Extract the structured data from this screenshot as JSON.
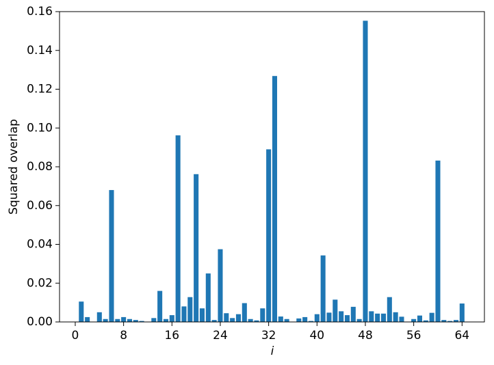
{
  "chart_data": {
    "type": "bar",
    "xlabel": "i",
    "ylabel": "Squared overlap",
    "x": [
      0,
      1,
      2,
      3,
      4,
      5,
      6,
      7,
      8,
      9,
      10,
      11,
      12,
      13,
      14,
      15,
      16,
      17,
      18,
      19,
      20,
      21,
      22,
      23,
      24,
      25,
      26,
      27,
      28,
      29,
      30,
      31,
      32,
      33,
      34,
      35,
      36,
      37,
      38,
      39,
      40,
      41,
      42,
      43,
      44,
      45,
      46,
      47,
      48,
      49,
      50,
      51,
      52,
      53,
      54,
      55,
      56,
      57,
      58,
      59,
      60,
      61,
      62,
      63,
      64
    ],
    "values": [
      0,
      0.0105,
      0.0025,
      0,
      0.005,
      0.0015,
      0.068,
      0.0015,
      0.0025,
      0.0015,
      0.001,
      0.0005,
      0,
      0.002,
      0.016,
      0.0015,
      0.0035,
      0.0962,
      0.008,
      0.0128,
      0.0762,
      0.007,
      0.025,
      0.001,
      0.0375,
      0.0045,
      0.002,
      0.004,
      0.0097,
      0.0015,
      0.0008,
      0.007,
      0.089,
      0.1268,
      0.0028,
      0.0015,
      0,
      0.0018,
      0.0025,
      0.0005,
      0.004,
      0.0343,
      0.0048,
      0.0115,
      0.0055,
      0.0035,
      0.0078,
      0.0015,
      0.1553,
      0.0055,
      0.0043,
      0.0043,
      0.0128,
      0.005,
      0.0027,
      0,
      0.0015,
      0.0033,
      0.0008,
      0.0047,
      0.0832,
      0.001,
      0.0005,
      0.001,
      0.0095
    ],
    "color": "#1f77b4",
    "xlim": [
      -2.6,
      67.7
    ],
    "xticks": [
      0,
      8,
      16,
      24,
      32,
      40,
      48,
      56,
      64
    ],
    "ylim": [
      0,
      0.16
    ],
    "yticks": [
      {
        "value": 0,
        "label": "0.00"
      },
      {
        "value": 0.02,
        "label": "0.02"
      },
      {
        "value": 0.04,
        "label": "0.04"
      },
      {
        "value": 0.06,
        "label": "0.06"
      },
      {
        "value": 0.08,
        "label": "0.08"
      },
      {
        "value": 0.1,
        "label": "0.10"
      },
      {
        "value": 0.12,
        "label": "0.12"
      },
      {
        "value": 0.14,
        "label": "0.14"
      },
      {
        "value": 0.16,
        "label": "0.16"
      }
    ]
  }
}
